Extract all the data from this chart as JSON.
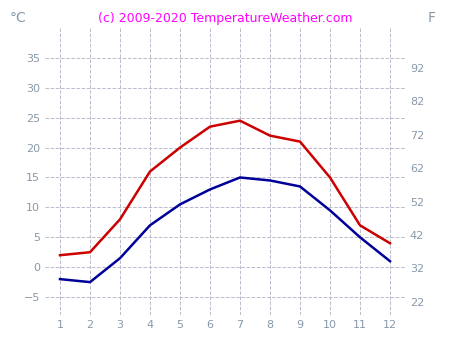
{
  "months": [
    1,
    2,
    3,
    4,
    5,
    6,
    7,
    8,
    9,
    10,
    11,
    12
  ],
  "red_line": [
    2.0,
    2.5,
    8.0,
    16.0,
    20.0,
    23.5,
    24.5,
    22.0,
    21.0,
    15.0,
    7.0,
    4.0
  ],
  "blue_line": [
    -2.0,
    -2.5,
    1.5,
    7.0,
    10.5,
    13.0,
    15.0,
    14.5,
    13.5,
    9.5,
    5.0,
    1.0
  ],
  "red_color": "#cc0000",
  "blue_color": "#000099",
  "title": "(c) 2009-2020 TemperatureWeather.com",
  "title_color": "#ff00ff",
  "celsius_label": "°C",
  "fahrenheit_label": "F",
  "ylabel_color": "#8899aa",
  "tick_color": "#8899aa",
  "grid_color": "#bbbbcc",
  "background_color": "#ffffff",
  "ylim_celsius": [
    -8,
    40
  ],
  "ylim_fahrenheit": [
    18,
    104
  ],
  "yticks_celsius": [
    -5,
    0,
    5,
    10,
    15,
    20,
    25,
    30,
    35
  ],
  "yticks_fahrenheit": [
    22,
    32,
    42,
    52,
    62,
    72,
    82,
    92
  ],
  "xlim": [
    0.5,
    12.5
  ],
  "xticks": [
    1,
    2,
    3,
    4,
    5,
    6,
    7,
    8,
    9,
    10,
    11,
    12
  ],
  "line_width": 1.8,
  "title_fontsize": 9,
  "tick_fontsize": 8,
  "label_fontsize": 10
}
